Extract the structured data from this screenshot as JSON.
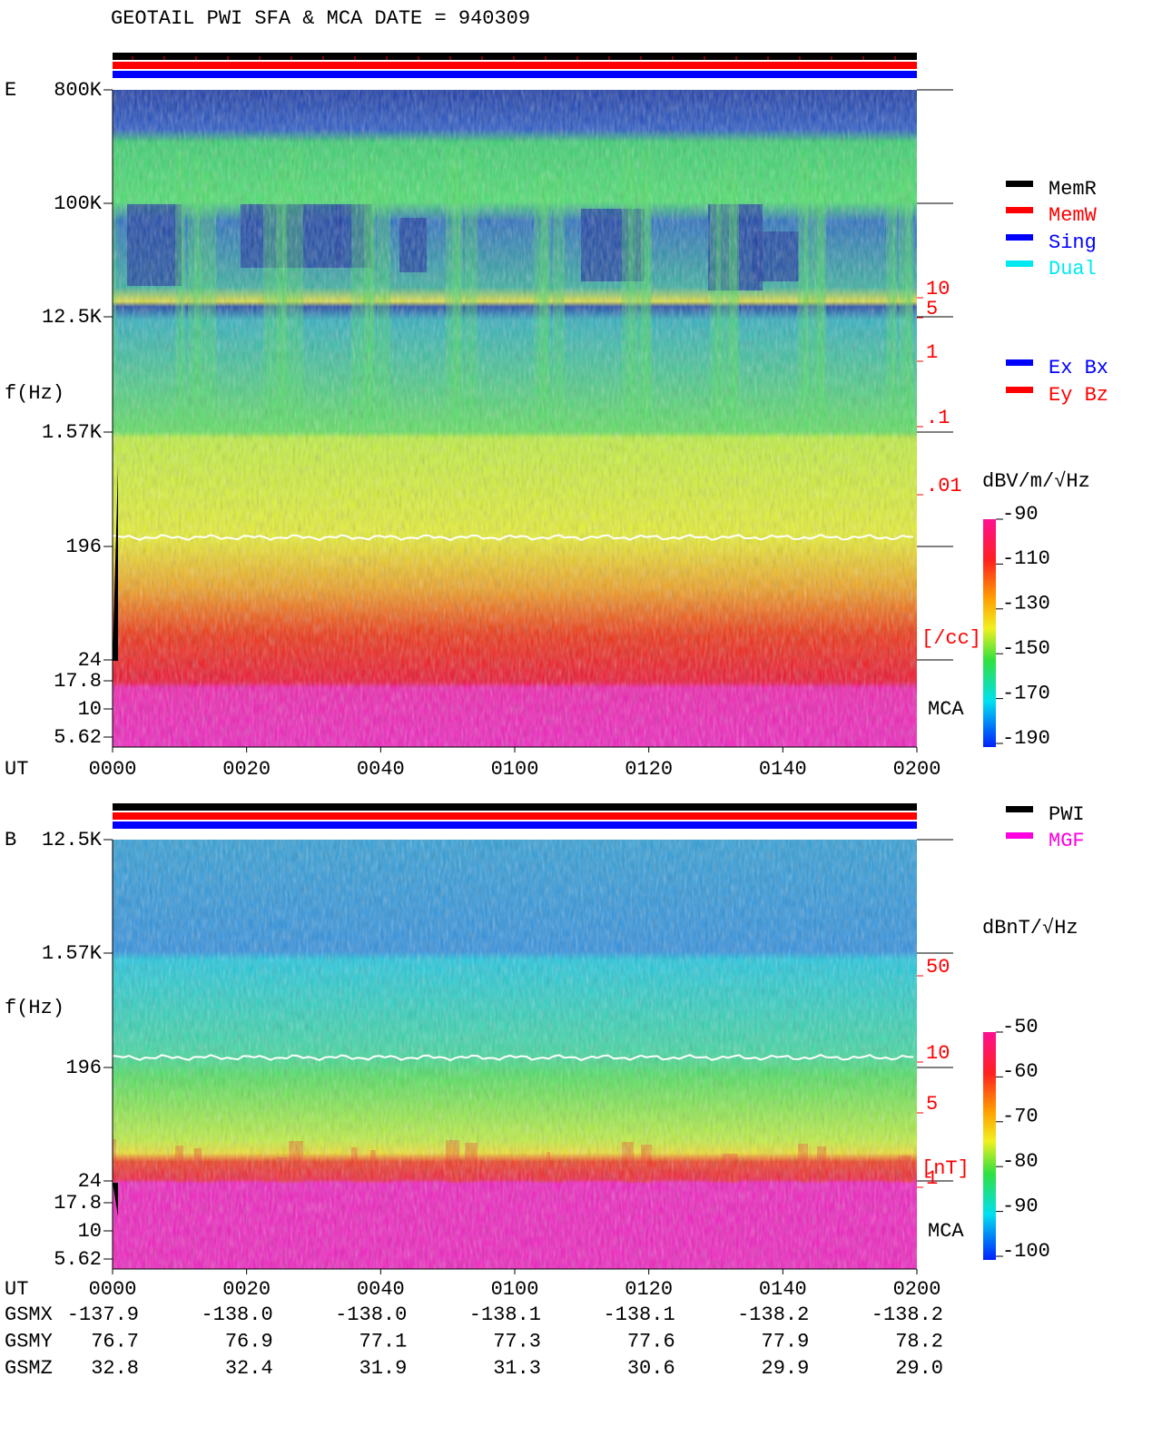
{
  "title": "GEOTAIL  PWI SFA & MCA   DATE = 940309",
  "time_axis": {
    "label": "UT",
    "ticks": [
      "0000",
      "0020",
      "0040",
      "0100",
      "0120",
      "0140",
      "0200"
    ]
  },
  "panels": [
    {
      "label": "E",
      "freq_axis_label": "f(Hz)",
      "freq_ticks": [
        "800K",
        "100K",
        "12.5K",
        "1.57K",
        "196",
        "24",
        "17.8",
        "10",
        "5.62"
      ],
      "mca_label": "MCA",
      "right_ticks": [
        "10",
        "5",
        "1",
        ".1",
        ".01"
      ],
      "right_unit": "[/cc]",
      "colorbar": {
        "unit": "dBV/m/√Hz",
        "lim": [
          -90,
          -190
        ],
        "ticks": [
          -90,
          -110,
          -130,
          -150,
          -170,
          -190
        ]
      },
      "legend": [
        {
          "label": "MemR",
          "color": "#000000"
        },
        {
          "label": "MemW",
          "color": "#ff0000"
        },
        {
          "label": "Sing",
          "color": "#0000ff"
        },
        {
          "label": "Dual",
          "color": "#00e8f0"
        }
      ],
      "legend2": [
        {
          "label": "Ex Bx",
          "color": "#0000ff"
        },
        {
          "label": "Ey Bz",
          "color": "#ff0000"
        }
      ]
    },
    {
      "label": "B",
      "freq_axis_label": "f(Hz)",
      "freq_ticks": [
        "12.5K",
        "1.57K",
        "196",
        "24",
        "17.8",
        "10",
        "5.62"
      ],
      "mca_label": "MCA",
      "right_ticks": [
        "50",
        "10",
        "5",
        "1"
      ],
      "right_unit": "[nT]",
      "colorbar": {
        "unit": "dBnT/√Hz",
        "lim": [
          -50,
          -100
        ],
        "ticks": [
          -50,
          -60,
          -70,
          -80,
          -90,
          -100
        ]
      },
      "legend": [
        {
          "label": "PWI",
          "color": "#000000"
        },
        {
          "label": "MGF",
          "color": "#ff00e0"
        }
      ]
    }
  ],
  "orbit": {
    "rows": [
      {
        "label": "GSMX",
        "values": [
          "-137.9",
          "-138.0",
          "-138.0",
          "-138.1",
          "-138.1",
          "-138.2",
          "-138.2"
        ]
      },
      {
        "label": "GSMY",
        "values": [
          "76.7",
          "76.9",
          "77.1",
          "77.3",
          "77.6",
          "77.9",
          "78.2"
        ]
      },
      {
        "label": "GSMZ",
        "values": [
          "32.8",
          "32.4",
          "31.9",
          "31.3",
          "30.6",
          "29.9",
          "29.0"
        ]
      }
    ]
  }
}
